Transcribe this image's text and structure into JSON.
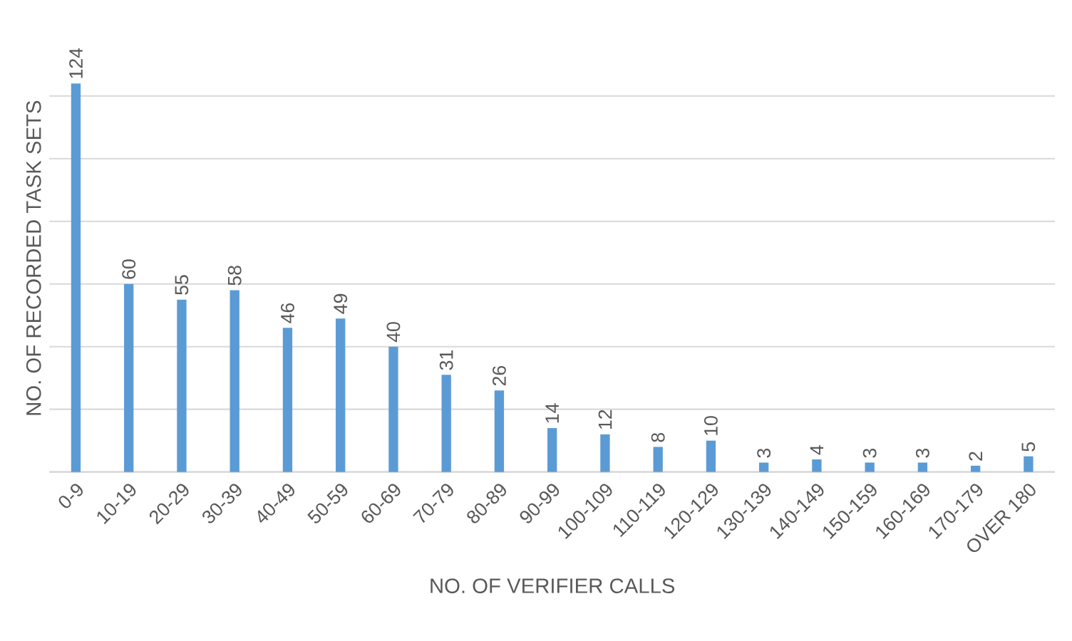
{
  "chart_data": {
    "type": "bar",
    "xlabel": "NO. OF VERIFIER CALLS",
    "ylabel": "NO. OF RECORDED TASK SETS",
    "categories": [
      "0-9",
      "10-19",
      "20-29",
      "30-39",
      "40-49",
      "50-59",
      "60-69",
      "70-79",
      "80-89",
      "90-99",
      "100-109",
      "110-119",
      "120-129",
      "130-139",
      "140-149",
      "150-159",
      "160-169",
      "170-179",
      "OVER 180"
    ],
    "values": [
      124,
      60,
      55,
      58,
      46,
      49,
      40,
      31,
      26,
      14,
      12,
      8,
      10,
      3,
      4,
      3,
      3,
      2,
      5
    ],
    "color": "#5b9bd5",
    "grid": "y",
    "tick_labels": "x",
    "data_labels": true
  }
}
